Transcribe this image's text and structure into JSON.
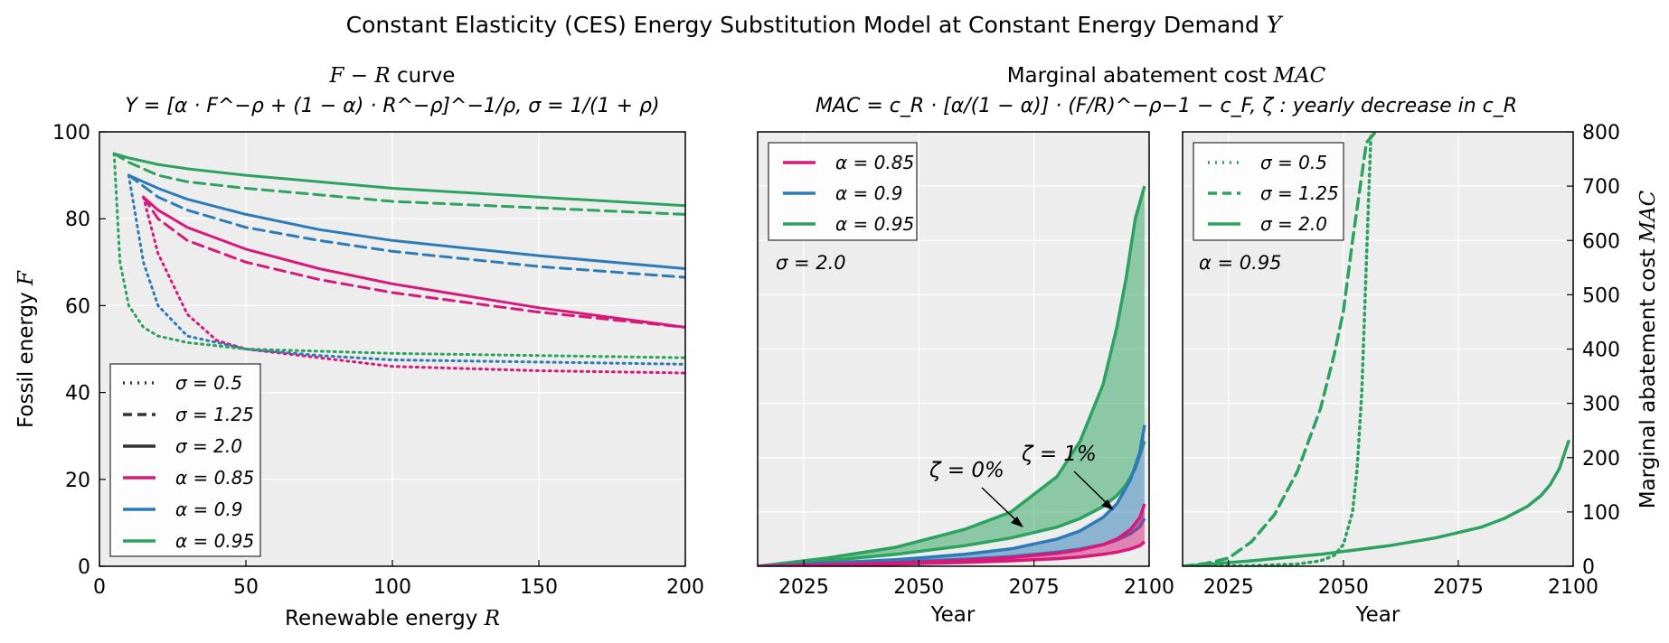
{
  "figure": {
    "title_text": "Constant Elasticity (CES) Energy Substitution Model at Constant Energy Demand ",
    "title_math": "Y"
  },
  "colors": {
    "a085": "#d6197a",
    "a090": "#2c7bb6",
    "a095": "#2ca25f",
    "panel_bg": "#ededed",
    "grid": "#ffffff"
  },
  "panel1": {
    "title_math": "F − R",
    "title_text": " curve",
    "subtitle": "Y = [α · F^−ρ + (1 − α) · R^−ρ]^−1/ρ, σ = 1/(1 + ρ)",
    "xlabel_text": "Renewable energy ",
    "xlabel_math": "R",
    "ylabel_text": "Fossil energy ",
    "ylabel_math": "F",
    "legend": [
      {
        "label": "σ = 0.5",
        "style": "dotted",
        "color": "#333333"
      },
      {
        "label": "σ = 1.25",
        "style": "dashed",
        "color": "#333333"
      },
      {
        "label": "σ = 2.0",
        "style": "solid",
        "color": "#333333"
      },
      {
        "label": "α = 0.85",
        "style": "solid",
        "color": "#d6197a"
      },
      {
        "label": "α = 0.9",
        "style": "solid",
        "color": "#2c7bb6"
      },
      {
        "label": "α = 0.95",
        "style": "solid",
        "color": "#2ca25f"
      }
    ]
  },
  "panel2": {
    "title_text": "Marginal abatement cost ",
    "title_math": "MAC",
    "subtitle": "MAC = c_R · [α/(1 − α)] · (F/R)^−ρ−1 − c_F,   ζ : yearly decrease in c_R",
    "xlabel": "Year",
    "annot_sigma": "σ = 2.0",
    "annot_z0": "ζ = 0%",
    "annot_z1": "ζ = 1%",
    "legend": [
      {
        "label": "α = 0.85",
        "color": "#d6197a"
      },
      {
        "label": "α = 0.9",
        "color": "#2c7bb6"
      },
      {
        "label": "α = 0.95",
        "color": "#2ca25f"
      }
    ]
  },
  "panel3": {
    "xlabel": "Year",
    "ylabel_text": "Marginal abatement cost ",
    "ylabel_math": "MAC",
    "annot_alpha": "α = 0.95",
    "legend": [
      {
        "label": "σ = 0.5",
        "style": "dotted"
      },
      {
        "label": "σ = 1.25",
        "style": "dashed"
      },
      {
        "label": "σ = 2.0",
        "style": "solid"
      }
    ]
  },
  "chart_data": [
    {
      "type": "line",
      "xlim": [
        0,
        200
      ],
      "ylim": [
        0,
        100
      ],
      "x_ticks": [
        0,
        50,
        100,
        150,
        200
      ],
      "y_ticks": [
        0,
        20,
        40,
        60,
        80,
        100
      ],
      "grid": true,
      "legend_position": "lower-left",
      "series": [
        {
          "name": "σ = 0.5, α = 0.85",
          "color": "#d6197a",
          "style": "dotted",
          "x": [
            15,
            20,
            30,
            40,
            50,
            75,
            100,
            150,
            200
          ],
          "y": [
            85,
            72,
            58,
            52,
            50,
            48,
            46,
            45,
            44.5
          ]
        },
        {
          "name": "σ = 1.25, α = 0.85",
          "color": "#d6197a",
          "style": "dashed",
          "x": [
            15,
            20,
            30,
            50,
            75,
            100,
            150,
            200
          ],
          "y": [
            85,
            80,
            75,
            70,
            66,
            63,
            58.5,
            55
          ]
        },
        {
          "name": "σ = 2.0, α = 0.85",
          "color": "#d6197a",
          "style": "solid",
          "x": [
            15,
            20,
            30,
            50,
            75,
            100,
            150,
            200
          ],
          "y": [
            85,
            82,
            78,
            73,
            68.5,
            65,
            59.5,
            55
          ]
        },
        {
          "name": "σ = 0.5, α = 0.9",
          "color": "#2c7bb6",
          "style": "dotted",
          "x": [
            10,
            15,
            20,
            30,
            50,
            75,
            100,
            150,
            200
          ],
          "y": [
            90,
            70,
            60,
            53,
            50,
            48.5,
            47.5,
            47,
            46.5
          ]
        },
        {
          "name": "σ = 1.25, α = 0.9",
          "color": "#2c7bb6",
          "style": "dashed",
          "x": [
            10,
            20,
            30,
            50,
            75,
            100,
            150,
            200
          ],
          "y": [
            90,
            85,
            82,
            78,
            75,
            72.5,
            69,
            66.5
          ]
        },
        {
          "name": "σ = 2.0, α = 0.9",
          "color": "#2c7bb6",
          "style": "solid",
          "x": [
            10,
            20,
            30,
            50,
            75,
            100,
            150,
            200
          ],
          "y": [
            90,
            87,
            84.5,
            81,
            77.5,
            75,
            71.5,
            68.5
          ]
        },
        {
          "name": "σ = 0.5, α = 0.95",
          "color": "#2ca25f",
          "style": "dotted",
          "x": [
            5,
            7,
            10,
            15,
            20,
            30,
            50,
            75,
            100,
            150,
            200
          ],
          "y": [
            95,
            70,
            60,
            55,
            53,
            51.5,
            50,
            49.5,
            49,
            48.5,
            48
          ]
        },
        {
          "name": "σ = 1.25, α = 0.95",
          "color": "#2ca25f",
          "style": "dashed",
          "x": [
            5,
            10,
            20,
            30,
            50,
            75,
            100,
            150,
            200
          ],
          "y": [
            95,
            93,
            90,
            88.5,
            87,
            85.5,
            84,
            82.5,
            81
          ]
        },
        {
          "name": "σ = 2.0, α = 0.95",
          "color": "#2ca25f",
          "style": "solid",
          "x": [
            5,
            10,
            20,
            30,
            50,
            75,
            100,
            150,
            200
          ],
          "y": [
            95,
            94,
            92.5,
            91.5,
            90,
            88.5,
            87,
            85,
            83
          ]
        }
      ]
    },
    {
      "type": "area",
      "xlim": [
        2015,
        2100
      ],
      "ylim": [
        0,
        800
      ],
      "x_ticks": [
        2025,
        2050,
        2075,
        2100
      ],
      "grid": true,
      "legend_position": "top-left",
      "bands": [
        {
          "name": "α = 0.85",
          "color": "#d6197a",
          "x": [
            2015,
            2030,
            2045,
            2060,
            2070,
            2080,
            2085,
            2090,
            2093,
            2096,
            2098,
            2099
          ],
          "lower": [
            0,
            2,
            4,
            7,
            10,
            14,
            17,
            22,
            26,
            32,
            38,
            45
          ],
          "upper": [
            0,
            3,
            6,
            11,
            16,
            24,
            30,
            40,
            50,
            68,
            90,
            115
          ]
        },
        {
          "name": "α = 0.9",
          "color": "#2c7bb6",
          "x": [
            2015,
            2030,
            2045,
            2060,
            2070,
            2080,
            2085,
            2090,
            2093,
            2096,
            2098,
            2099
          ],
          "lower": [
            0,
            4,
            8,
            13,
            18,
            26,
            32,
            40,
            48,
            60,
            73,
            88
          ],
          "upper": [
            0,
            6,
            12,
            22,
            32,
            50,
            65,
            90,
            115,
            160,
            210,
            260
          ]
        },
        {
          "name": "α = 0.95",
          "color": "#2ca25f",
          "x": [
            2015,
            2030,
            2045,
            2060,
            2070,
            2080,
            2085,
            2090,
            2093,
            2095,
            2097,
            2099
          ],
          "lower": [
            0,
            10,
            22,
            38,
            52,
            72,
            88,
            110,
            130,
            150,
            180,
            230
          ],
          "upper": [
            0,
            15,
            35,
            68,
            100,
            165,
            230,
            335,
            440,
            530,
            640,
            700
          ]
        }
      ]
    },
    {
      "type": "line",
      "xlim": [
        2015,
        2100
      ],
      "ylim": [
        0,
        800
      ],
      "x_ticks": [
        2025,
        2050,
        2075,
        2100
      ],
      "y_ticks": [
        0,
        100,
        200,
        300,
        400,
        500,
        600,
        700,
        800
      ],
      "grid": true,
      "legend_position": "top-left",
      "series": [
        {
          "name": "σ = 0.5",
          "color": "#2ca25f",
          "style": "dotted",
          "x": [
            2015,
            2030,
            2040,
            2045,
            2048,
            2050,
            2052,
            2053,
            2054,
            2055,
            2056
          ],
          "y": [
            0,
            1,
            4,
            10,
            20,
            40,
            100,
            180,
            320,
            560,
            800
          ]
        },
        {
          "name": "σ = 1.25",
          "color": "#2ca25f",
          "style": "dashed",
          "x": [
            2015,
            2020,
            2025,
            2030,
            2035,
            2040,
            2045,
            2048,
            2050,
            2052,
            2053,
            2055,
            2057
          ],
          "y": [
            0,
            5,
            15,
            45,
            95,
            175,
            290,
            390,
            470,
            600,
            660,
            780,
            800
          ]
        },
        {
          "name": "σ = 2.0",
          "color": "#2ca25f",
          "style": "solid",
          "x": [
            2015,
            2030,
            2045,
            2060,
            2070,
            2080,
            2085,
            2090,
            2093,
            2095,
            2097,
            2099
          ],
          "y": [
            0,
            10,
            22,
            38,
            52,
            72,
            88,
            110,
            130,
            150,
            180,
            230
          ]
        }
      ]
    }
  ]
}
